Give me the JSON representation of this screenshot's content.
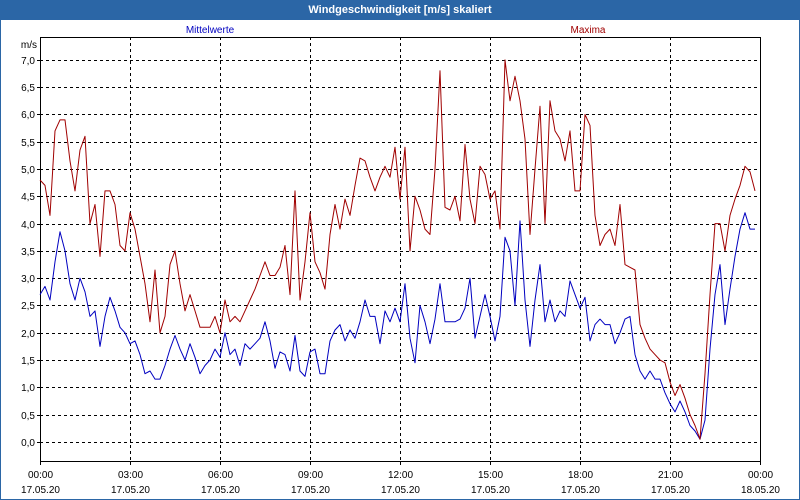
{
  "theme": {
    "title_bar_color": "#2b66a6"
  },
  "chart_data": {
    "type": "line",
    "title": "Windgeschwindigkeit [m/s] skaliert",
    "ylabel": "m/s",
    "ylim": [
      -0.35,
      7.42
    ],
    "xlim": [
      "17.05.20 00:00",
      "18.05.20 00:00"
    ],
    "yticks": [
      0,
      0.5,
      1,
      1.5,
      2,
      2.5,
      3,
      3.5,
      4,
      4.5,
      5,
      5.5,
      6,
      6.5,
      7
    ],
    "ytick_labels": [
      "0,0",
      "0,5",
      "1,0",
      "1,5",
      "2,0",
      "2,5",
      "3,0",
      "3,5",
      "4,0",
      "4,5",
      "5,0",
      "5,5",
      "6,0",
      "6,5",
      "7,0"
    ],
    "xtick_labels": [
      {
        "time": "00:00",
        "date": "17.05.20"
      },
      {
        "time": "03:00",
        "date": "17.05.20"
      },
      {
        "time": "06:00",
        "date": "17.05.20"
      },
      {
        "time": "09:00",
        "date": "17.05.20"
      },
      {
        "time": "12:00",
        "date": "17.05.20"
      },
      {
        "time": "15:00",
        "date": "17.05.20"
      },
      {
        "time": "18:00",
        "date": "17.05.20"
      },
      {
        "time": "21:00",
        "date": "17.05.20"
      },
      {
        "time": "00:00",
        "date": "18.05.20"
      }
    ],
    "grid": true,
    "legend": "top",
    "x": [
      "17.05.20 00:00",
      "17.05.20 00:10",
      "17.05.20 00:20",
      "17.05.20 00:30",
      "17.05.20 00:40",
      "17.05.20 00:50",
      "17.05.20 01:00",
      "17.05.20 01:10",
      "17.05.20 01:20",
      "17.05.20 01:30",
      "17.05.20 01:40",
      "17.05.20 01:50",
      "17.05.20 02:00",
      "17.05.20 02:10",
      "17.05.20 02:20",
      "17.05.20 02:30",
      "17.05.20 02:40",
      "17.05.20 02:50",
      "17.05.20 03:00",
      "17.05.20 03:10",
      "17.05.20 03:20",
      "17.05.20 03:30",
      "17.05.20 03:40",
      "17.05.20 03:50",
      "17.05.20 04:00",
      "17.05.20 04:10",
      "17.05.20 04:20",
      "17.05.20 04:30",
      "17.05.20 04:40",
      "17.05.20 04:50",
      "17.05.20 05:00",
      "17.05.20 05:10",
      "17.05.20 05:20",
      "17.05.20 05:30",
      "17.05.20 05:40",
      "17.05.20 05:50",
      "17.05.20 06:00",
      "17.05.20 06:10",
      "17.05.20 06:20",
      "17.05.20 06:30",
      "17.05.20 06:40",
      "17.05.20 06:50",
      "17.05.20 07:00",
      "17.05.20 07:10",
      "17.05.20 07:20",
      "17.05.20 07:30",
      "17.05.20 07:40",
      "17.05.20 07:50",
      "17.05.20 08:00",
      "17.05.20 08:10",
      "17.05.20 08:20",
      "17.05.20 08:30",
      "17.05.20 08:40",
      "17.05.20 08:50",
      "17.05.20 09:00",
      "17.05.20 09:10",
      "17.05.20 09:20",
      "17.05.20 09:30",
      "17.05.20 09:40",
      "17.05.20 09:50",
      "17.05.20 10:00",
      "17.05.20 10:10",
      "17.05.20 10:20",
      "17.05.20 10:30",
      "17.05.20 10:40",
      "17.05.20 10:50",
      "17.05.20 11:00",
      "17.05.20 11:10",
      "17.05.20 11:20",
      "17.05.20 11:30",
      "17.05.20 11:40",
      "17.05.20 11:50",
      "17.05.20 12:00",
      "17.05.20 12:10",
      "17.05.20 12:20",
      "17.05.20 12:30",
      "17.05.20 12:40",
      "17.05.20 12:50",
      "17.05.20 13:00",
      "17.05.20 13:10",
      "17.05.20 13:20",
      "17.05.20 13:30",
      "17.05.20 13:40",
      "17.05.20 13:50",
      "17.05.20 14:00",
      "17.05.20 14:10",
      "17.05.20 14:20",
      "17.05.20 14:30",
      "17.05.20 14:40",
      "17.05.20 14:50",
      "17.05.20 15:00",
      "17.05.20 15:10",
      "17.05.20 15:20",
      "17.05.20 15:30",
      "17.05.20 15:40",
      "17.05.20 15:50",
      "17.05.20 16:00",
      "17.05.20 16:10",
      "17.05.20 16:20",
      "17.05.20 16:30",
      "17.05.20 16:40",
      "17.05.20 16:50",
      "17.05.20 17:00",
      "17.05.20 17:10",
      "17.05.20 17:20",
      "17.05.20 17:30",
      "17.05.20 17:40",
      "17.05.20 17:50",
      "17.05.20 18:00",
      "17.05.20 18:10",
      "17.05.20 18:20",
      "17.05.20 18:30",
      "17.05.20 18:40",
      "17.05.20 18:50",
      "17.05.20 19:00",
      "17.05.20 19:10",
      "17.05.20 19:20",
      "17.05.20 19:30",
      "17.05.20 19:40",
      "17.05.20 19:50",
      "17.05.20 20:00",
      "17.05.20 20:10",
      "17.05.20 20:20",
      "17.05.20 20:30",
      "17.05.20 20:40",
      "17.05.20 20:50",
      "17.05.20 21:00",
      "17.05.20 21:10",
      "17.05.20 21:20",
      "17.05.20 21:30",
      "17.05.20 21:40",
      "17.05.20 21:50",
      "17.05.20 22:00",
      "17.05.20 22:10",
      "17.05.20 22:20",
      "17.05.20 22:30",
      "17.05.20 22:40",
      "17.05.20 22:50",
      "17.05.20 23:00",
      "17.05.20 23:10",
      "17.05.20 23:20",
      "17.05.20 23:30",
      "17.05.20 23:40",
      "17.05.20 23:50"
    ],
    "series": [
      {
        "name": "Mittelwerte",
        "color": "#0000c0",
        "values": [
          2.7,
          2.85,
          2.6,
          3.3,
          3.85,
          3.5,
          2.9,
          2.6,
          3.0,
          2.75,
          2.3,
          2.4,
          1.75,
          2.3,
          2.65,
          2.4,
          2.1,
          2.0,
          1.8,
          1.85,
          1.6,
          1.25,
          1.3,
          1.15,
          1.15,
          1.4,
          1.7,
          1.95,
          1.7,
          1.5,
          1.8,
          1.55,
          1.25,
          1.4,
          1.5,
          1.7,
          1.55,
          2.0,
          1.6,
          1.7,
          1.4,
          1.8,
          1.7,
          1.8,
          1.9,
          2.2,
          1.85,
          1.35,
          1.65,
          1.6,
          1.3,
          1.95,
          1.3,
          1.2,
          1.65,
          1.7,
          1.25,
          1.25,
          1.85,
          2.05,
          2.15,
          1.85,
          2.05,
          1.9,
          2.2,
          2.6,
          2.3,
          2.3,
          1.8,
          2.4,
          2.2,
          2.45,
          2.2,
          2.9,
          1.9,
          1.45,
          2.5,
          2.2,
          1.8,
          2.25,
          2.9,
          2.2,
          2.2,
          2.2,
          2.25,
          2.45,
          3.0,
          1.9,
          2.3,
          2.7,
          2.3,
          1.85,
          2.3,
          3.75,
          3.5,
          2.5,
          4.05,
          2.6,
          1.75,
          2.6,
          3.25,
          2.2,
          2.6,
          2.2,
          2.4,
          2.3,
          2.95,
          2.7,
          2.45,
          2.65,
          1.85,
          2.15,
          2.25,
          2.15,
          2.15,
          1.8,
          2.0,
          2.25,
          2.3,
          1.6,
          1.3,
          1.15,
          1.3,
          1.15,
          1.15,
          0.9,
          0.7,
          0.55,
          0.75,
          0.55,
          0.3,
          0.2,
          0.05,
          0.4,
          1.7,
          2.7,
          3.25,
          2.15,
          2.8,
          3.4,
          3.9,
          4.2,
          3.9,
          3.9
        ]
      },
      {
        "name": "Maxima",
        "color": "#a00000",
        "values": [
          4.8,
          4.7,
          4.15,
          5.7,
          5.9,
          5.9,
          5.15,
          4.6,
          5.35,
          5.6,
          4.0,
          4.35,
          3.4,
          4.6,
          4.6,
          4.35,
          3.6,
          3.5,
          4.2,
          3.9,
          3.4,
          2.9,
          2.2,
          3.15,
          2.0,
          2.3,
          3.25,
          3.5,
          2.9,
          2.4,
          2.7,
          2.4,
          2.1,
          2.1,
          2.1,
          2.3,
          2.0,
          2.6,
          2.2,
          2.3,
          2.2,
          2.4,
          2.6,
          2.8,
          3.05,
          3.3,
          3.05,
          3.05,
          3.2,
          3.6,
          2.7,
          4.6,
          2.6,
          3.3,
          4.2,
          3.3,
          3.1,
          2.8,
          3.8,
          4.35,
          3.9,
          4.45,
          4.15,
          4.7,
          5.2,
          5.15,
          4.85,
          4.6,
          4.85,
          5.05,
          4.85,
          5.4,
          4.45,
          5.4,
          3.5,
          4.5,
          4.25,
          3.9,
          3.8,
          5.0,
          6.8,
          4.3,
          4.25,
          4.5,
          4.05,
          5.45,
          4.45,
          4.0,
          5.05,
          4.9,
          4.45,
          4.6,
          3.9,
          7.0,
          6.25,
          6.7,
          6.25,
          5.55,
          3.8,
          5.0,
          6.15,
          4.0,
          6.25,
          5.7,
          5.55,
          5.15,
          5.7,
          4.6,
          4.6,
          6.0,
          5.8,
          4.15,
          3.6,
          3.8,
          3.9,
          3.6,
          4.35,
          3.25,
          3.2,
          3.15,
          2.15,
          1.9,
          1.7,
          1.6,
          1.5,
          1.45,
          1.1,
          0.85,
          1.05,
          0.8,
          0.5,
          0.3,
          0.05,
          1.25,
          2.7,
          4.0,
          4.0,
          3.5,
          4.15,
          4.45,
          4.7,
          5.05,
          4.95,
          4.6
        ]
      }
    ]
  }
}
